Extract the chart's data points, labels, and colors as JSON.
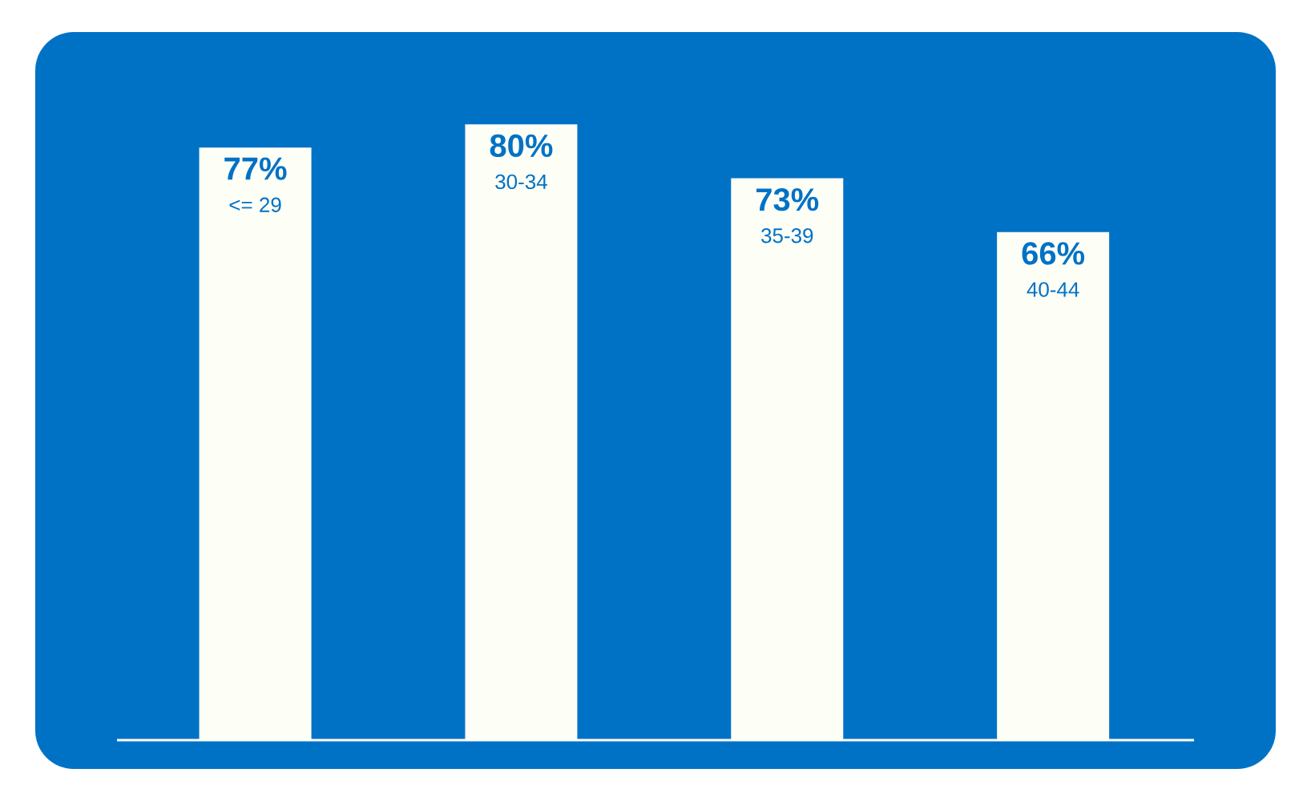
{
  "chart_data": {
    "type": "bar",
    "categories": [
      "<= 29",
      "30-34",
      "35-39",
      "40-44"
    ],
    "values": [
      77,
      80,
      73,
      66
    ],
    "value_labels": [
      "77%",
      "80%",
      "73%",
      "66%"
    ],
    "color": "#fdfff6"
  }
}
